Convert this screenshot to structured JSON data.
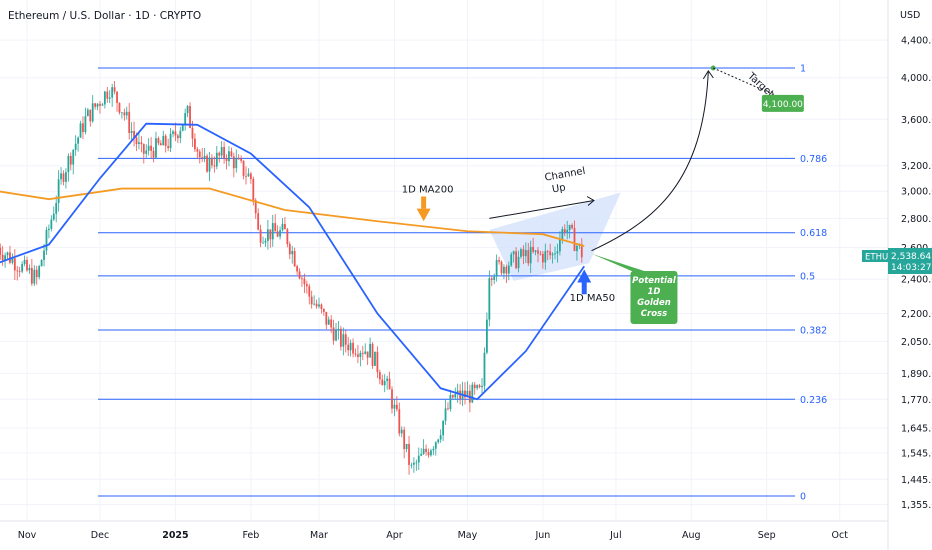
{
  "header": {
    "title": "Ethereum / U.S. Dollar · 1D · CRYPTO"
  },
  "price_axis": {
    "currency": "USD"
  },
  "ticker_badge": {
    "symbol": "ETHUSD",
    "price": "2,538.64",
    "countdown": "14:03:27"
  },
  "colors": {
    "up": "#26a69a",
    "down": "#ef5350",
    "ma200": "#f59a23",
    "ma50": "#2962ff",
    "fib": "#2962ff",
    "channel": "#d1e0fb",
    "callout": "#4caf50",
    "target": "#4caf50"
  },
  "annotations": {
    "ma200_label": "1D MA200",
    "channel_label_1": "Channel",
    "channel_label_2": "Up",
    "ma50_label": "1D MA50",
    "golden_cross": [
      "Potential",
      "1D",
      "Golden",
      "Cross"
    ],
    "target_label": "Target",
    "target_value": "4,100.00"
  },
  "chart_data": {
    "type": "candlestick",
    "title": "Ethereum / U.S. Dollar · 1D · CRYPTO",
    "x_ticks": [
      "Nov",
      "Dec",
      "2025",
      "Feb",
      "Mar",
      "Apr",
      "May",
      "Jun",
      "Jul",
      "Aug",
      "Sep",
      "Oct"
    ],
    "y_ticks": [
      "4,400.00",
      "4,000.00",
      "3,600.00",
      "3,200.00",
      "3,000.00",
      "2,800.00",
      "2,600.00",
      "2,400.00",
      "2,200.00",
      "2,050.00",
      "1,890.00",
      "1,770.00",
      "1,645.00",
      "1,545.00",
      "1,445.00",
      "1,355.00"
    ],
    "y_scale": "log",
    "fib_levels": [
      {
        "label": "1",
        "price": 4100
      },
      {
        "label": "0.786",
        "price": 3260
      },
      {
        "label": "0.618",
        "price": 2700
      },
      {
        "label": "0.5",
        "price": 2420
      },
      {
        "label": "0.382",
        "price": 2110
      },
      {
        "label": "0.236",
        "price": 1770
      },
      {
        "label": "0",
        "price": 1385
      }
    ],
    "last_price": 2538.64,
    "target_price": 4100,
    "anchors": [
      {
        "date": "2024-10-20",
        "price": 2600
      },
      {
        "date": "2024-11-05",
        "price": 2400
      },
      {
        "date": "2024-11-15",
        "price": 3100
      },
      {
        "date": "2024-11-25",
        "price": 3600
      },
      {
        "date": "2024-12-05",
        "price": 3900
      },
      {
        "date": "2024-12-10",
        "price": 3700
      },
      {
        "date": "2024-12-18",
        "price": 3300
      },
      {
        "date": "2024-12-30",
        "price": 3400
      },
      {
        "date": "2025-01-06",
        "price": 3650
      },
      {
        "date": "2025-01-12",
        "price": 3200
      },
      {
        "date": "2025-01-22",
        "price": 3300
      },
      {
        "date": "2025-02-01",
        "price": 3100
      },
      {
        "date": "2025-02-04",
        "price": 2700
      },
      {
        "date": "2025-02-15",
        "price": 2700
      },
      {
        "date": "2025-02-25",
        "price": 2300
      },
      {
        "date": "2025-03-10",
        "price": 2050
      },
      {
        "date": "2025-03-22",
        "price": 2000
      },
      {
        "date": "2025-03-30",
        "price": 1800
      },
      {
        "date": "2025-04-08",
        "price": 1480
      },
      {
        "date": "2025-04-18",
        "price": 1600
      },
      {
        "date": "2025-04-25",
        "price": 1780
      },
      {
        "date": "2025-05-07",
        "price": 1800
      },
      {
        "date": "2025-05-10",
        "price": 2450
      },
      {
        "date": "2025-05-25",
        "price": 2550
      },
      {
        "date": "2025-06-05",
        "price": 2550
      },
      {
        "date": "2025-06-10",
        "price": 2750
      },
      {
        "date": "2025-06-18",
        "price": 2538
      }
    ],
    "ma200": [
      {
        "date": "2024-10-20",
        "price": 3000
      },
      {
        "date": "2024-11-10",
        "price": 2940
      },
      {
        "date": "2024-12-10",
        "price": 3020
      },
      {
        "date": "2025-01-15",
        "price": 3020
      },
      {
        "date": "2025-02-15",
        "price": 2860
      },
      {
        "date": "2025-03-25",
        "price": 2780
      },
      {
        "date": "2025-05-01",
        "price": 2710
      },
      {
        "date": "2025-06-01",
        "price": 2690
      },
      {
        "date": "2025-06-18",
        "price": 2610
      }
    ],
    "ma50": [
      {
        "date": "2024-10-20",
        "price": 2500
      },
      {
        "date": "2024-11-10",
        "price": 2620
      },
      {
        "date": "2024-12-01",
        "price": 3100
      },
      {
        "date": "2024-12-20",
        "price": 3560
      },
      {
        "date": "2025-01-10",
        "price": 3550
      },
      {
        "date": "2025-02-01",
        "price": 3300
      },
      {
        "date": "2025-02-25",
        "price": 2880
      },
      {
        "date": "2025-03-25",
        "price": 2200
      },
      {
        "date": "2025-04-20",
        "price": 1820
      },
      {
        "date": "2025-05-05",
        "price": 1770
      },
      {
        "date": "2025-05-25",
        "price": 2000
      },
      {
        "date": "2025-06-18",
        "price": 2480
      }
    ]
  }
}
